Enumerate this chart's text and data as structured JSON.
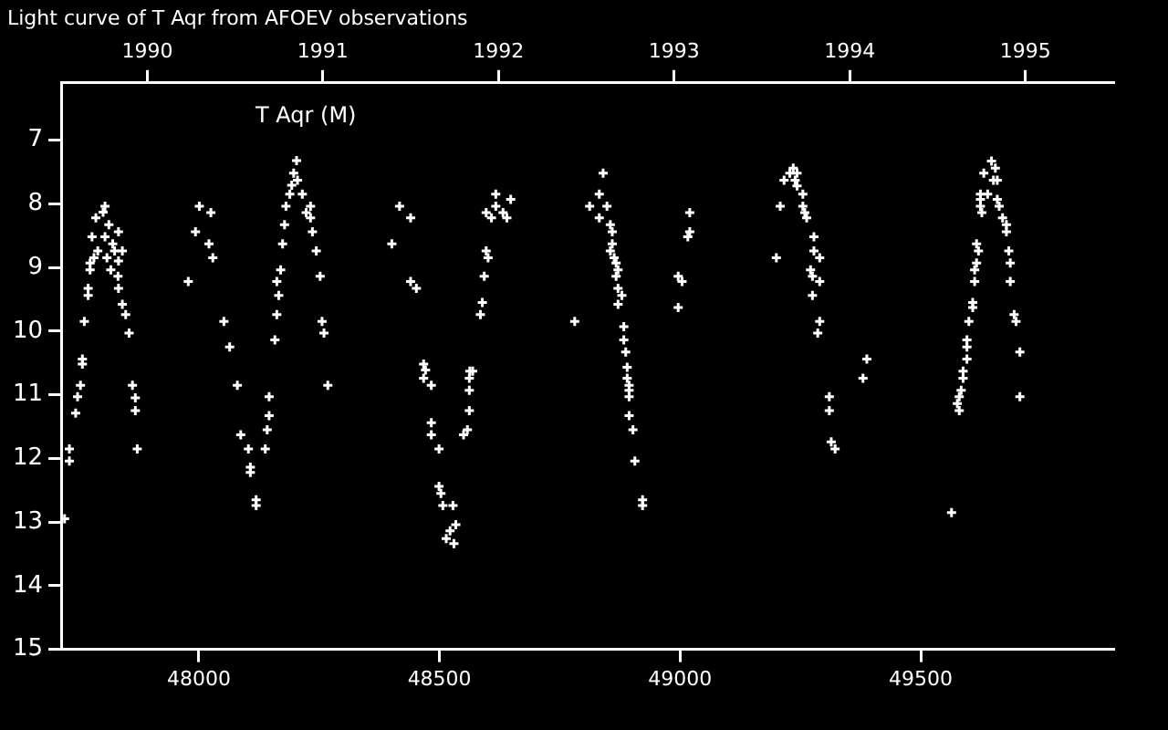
{
  "chart_data": {
    "type": "scatter",
    "title": "Light curve of T Aqr from AFOEV observations",
    "marker": "cross",
    "legend": "top left",
    "grid": false,
    "xlim": [
      47714,
      49900
    ],
    "xticks": [
      48000,
      48500,
      49000,
      49500
    ],
    "x2lim": [
      1989.51,
      1995.5
    ],
    "x2ticks": [
      1990,
      1991,
      1992,
      1993,
      1994,
      1995
    ],
    "ylim": [
      15,
      6.1
    ],
    "yticks": [
      7,
      8,
      9,
      10,
      11,
      12,
      13,
      14,
      15
    ],
    "series": [
      {
        "name": "T Aqr (M)",
        "color": "#ffffff",
        "x": [
          47721,
          47731,
          47731,
          47744,
          47748,
          47754,
          47758,
          47758,
          47762,
          47770,
          47770,
          47774,
          47774,
          47782,
          47778,
          47786,
          47790,
          47801,
          47805,
          47805,
          47809,
          47813,
          47817,
          47821,
          47825,
          47833,
          47833,
          47832,
          47833,
          47841,
          47841,
          47848,
          47855,
          47862,
          47868,
          47868,
          47872,
          47978,
          47993,
          48001,
          48021,
          48025,
          48029,
          48052,
          48064,
          48080,
          48087,
          48103,
          48107,
          48107,
          48119,
          48119,
          48138,
          48142,
          48146,
          48146,
          48158,
          48162,
          48162,
          48166,
          48170,
          48174,
          48178,
          48181,
          48189,
          48193,
          48197,
          48203,
          48205,
          48215,
          48223,
          48232,
          48232,
          48236,
          48244,
          48252,
          48256,
          48260,
          48268,
          48401,
          48417,
          48440,
          48440,
          48452,
          48467,
          48471,
          48467,
          48483,
          48483,
          48483,
          48499,
          48499,
          48503,
          48507,
          48528,
          48534,
          48522,
          48514,
          48530,
          48550,
          48558,
          48562,
          48562,
          48562,
          48563,
          48569,
          48585,
          48589,
          48593,
          48601,
          48597,
          48597,
          48608,
          48617,
          48617,
          48632,
          48640,
          48648,
          48781,
          48812,
          48832,
          48832,
          48840,
          48848,
          48855,
          48859,
          48859,
          48855,
          48863,
          48867,
          48871,
          48867,
          48871,
          48879,
          48871,
          48883,
          48883,
          48887,
          48890,
          48890,
          48894,
          48894,
          48894,
          48894,
          48902,
          48906,
          48922,
          48922,
          48996,
          49004,
          48996,
          49016,
          49020,
          49020,
          49200,
          49208,
          49216,
          49228,
          49235,
          49239,
          49243,
          49243,
          49255,
          49255,
          49259,
          49263,
          49278,
          49278,
          49290,
          49271,
          49275,
          49290,
          49275,
          49290,
          49286,
          49310,
          49310,
          49314,
          49322,
          49380,
          49388,
          49564,
          49580,
          49576,
          49580,
          49584,
          49588,
          49588,
          49596,
          49596,
          49596,
          49600,
          49608,
          49608,
          49612,
          49612,
          49616,
          49620,
          49616,
          49627,
          49624,
          49624,
          49624,
          49631,
          49639,
          49647,
          49655,
          49651,
          49659,
          49659,
          49663,
          49670,
          49678,
          49678,
          49683,
          49686,
          49686,
          49694,
          49698,
          49706,
          49706
        ],
        "values": [
          12.95,
          11.85,
          12.04,
          11.29,
          11.03,
          10.85,
          10.52,
          10.44,
          9.85,
          9.44,
          9.33,
          9.04,
          8.93,
          8.85,
          8.52,
          8.22,
          8.74,
          8.13,
          8.04,
          8.52,
          8.85,
          8.33,
          9.04,
          8.63,
          8.74,
          8.44,
          8.9,
          9.14,
          9.33,
          8.74,
          9.58,
          9.74,
          10.03,
          10.85,
          11.05,
          11.25,
          11.85,
          9.22,
          8.44,
          8.04,
          8.63,
          8.14,
          8.85,
          9.85,
          10.25,
          10.85,
          11.63,
          11.85,
          12.14,
          12.22,
          12.74,
          12.65,
          11.85,
          11.55,
          11.33,
          11.03,
          10.14,
          9.74,
          9.22,
          9.44,
          9.04,
          8.63,
          8.33,
          8.04,
          7.85,
          7.71,
          7.52,
          7.32,
          7.63,
          7.85,
          8.14,
          8.04,
          8.22,
          8.44,
          8.74,
          9.14,
          9.85,
          10.03,
          10.85,
          8.63,
          8.04,
          8.22,
          9.22,
          9.33,
          10.52,
          10.61,
          10.74,
          10.85,
          11.44,
          11.63,
          11.85,
          12.44,
          12.55,
          12.74,
          12.74,
          13.04,
          13.14,
          13.26,
          13.34,
          11.63,
          11.55,
          11.25,
          10.93,
          10.74,
          10.63,
          10.63,
          9.74,
          9.55,
          9.14,
          8.85,
          8.74,
          8.14,
          8.22,
          8.04,
          7.85,
          8.14,
          8.22,
          7.93,
          9.85,
          8.04,
          8.22,
          7.85,
          7.52,
          8.04,
          8.33,
          8.44,
          8.63,
          8.74,
          8.85,
          8.93,
          9.04,
          9.14,
          9.33,
          9.44,
          9.58,
          9.93,
          10.14,
          10.33,
          10.57,
          10.74,
          10.85,
          10.93,
          11.03,
          11.33,
          11.55,
          12.04,
          12.65,
          12.74,
          9.14,
          9.22,
          9.63,
          8.52,
          8.44,
          8.14,
          8.85,
          8.04,
          7.63,
          7.52,
          7.44,
          7.63,
          7.52,
          7.72,
          7.85,
          8.04,
          8.14,
          8.22,
          8.52,
          8.74,
          8.85,
          9.04,
          9.14,
          9.22,
          9.44,
          9.85,
          10.03,
          11.03,
          11.25,
          11.74,
          11.85,
          10.74,
          10.44,
          12.85,
          11.25,
          11.14,
          11.03,
          10.93,
          10.74,
          10.63,
          10.44,
          10.25,
          10.14,
          9.85,
          9.63,
          9.55,
          9.22,
          9.04,
          8.93,
          8.74,
          8.63,
          8.14,
          8.04,
          7.93,
          7.85,
          7.52,
          7.85,
          7.33,
          7.44,
          7.63,
          7.63,
          7.93,
          8.04,
          8.22,
          8.33,
          8.44,
          8.74,
          8.93,
          9.22,
          9.74,
          9.85,
          10.33,
          11.03
        ]
      }
    ]
  }
}
